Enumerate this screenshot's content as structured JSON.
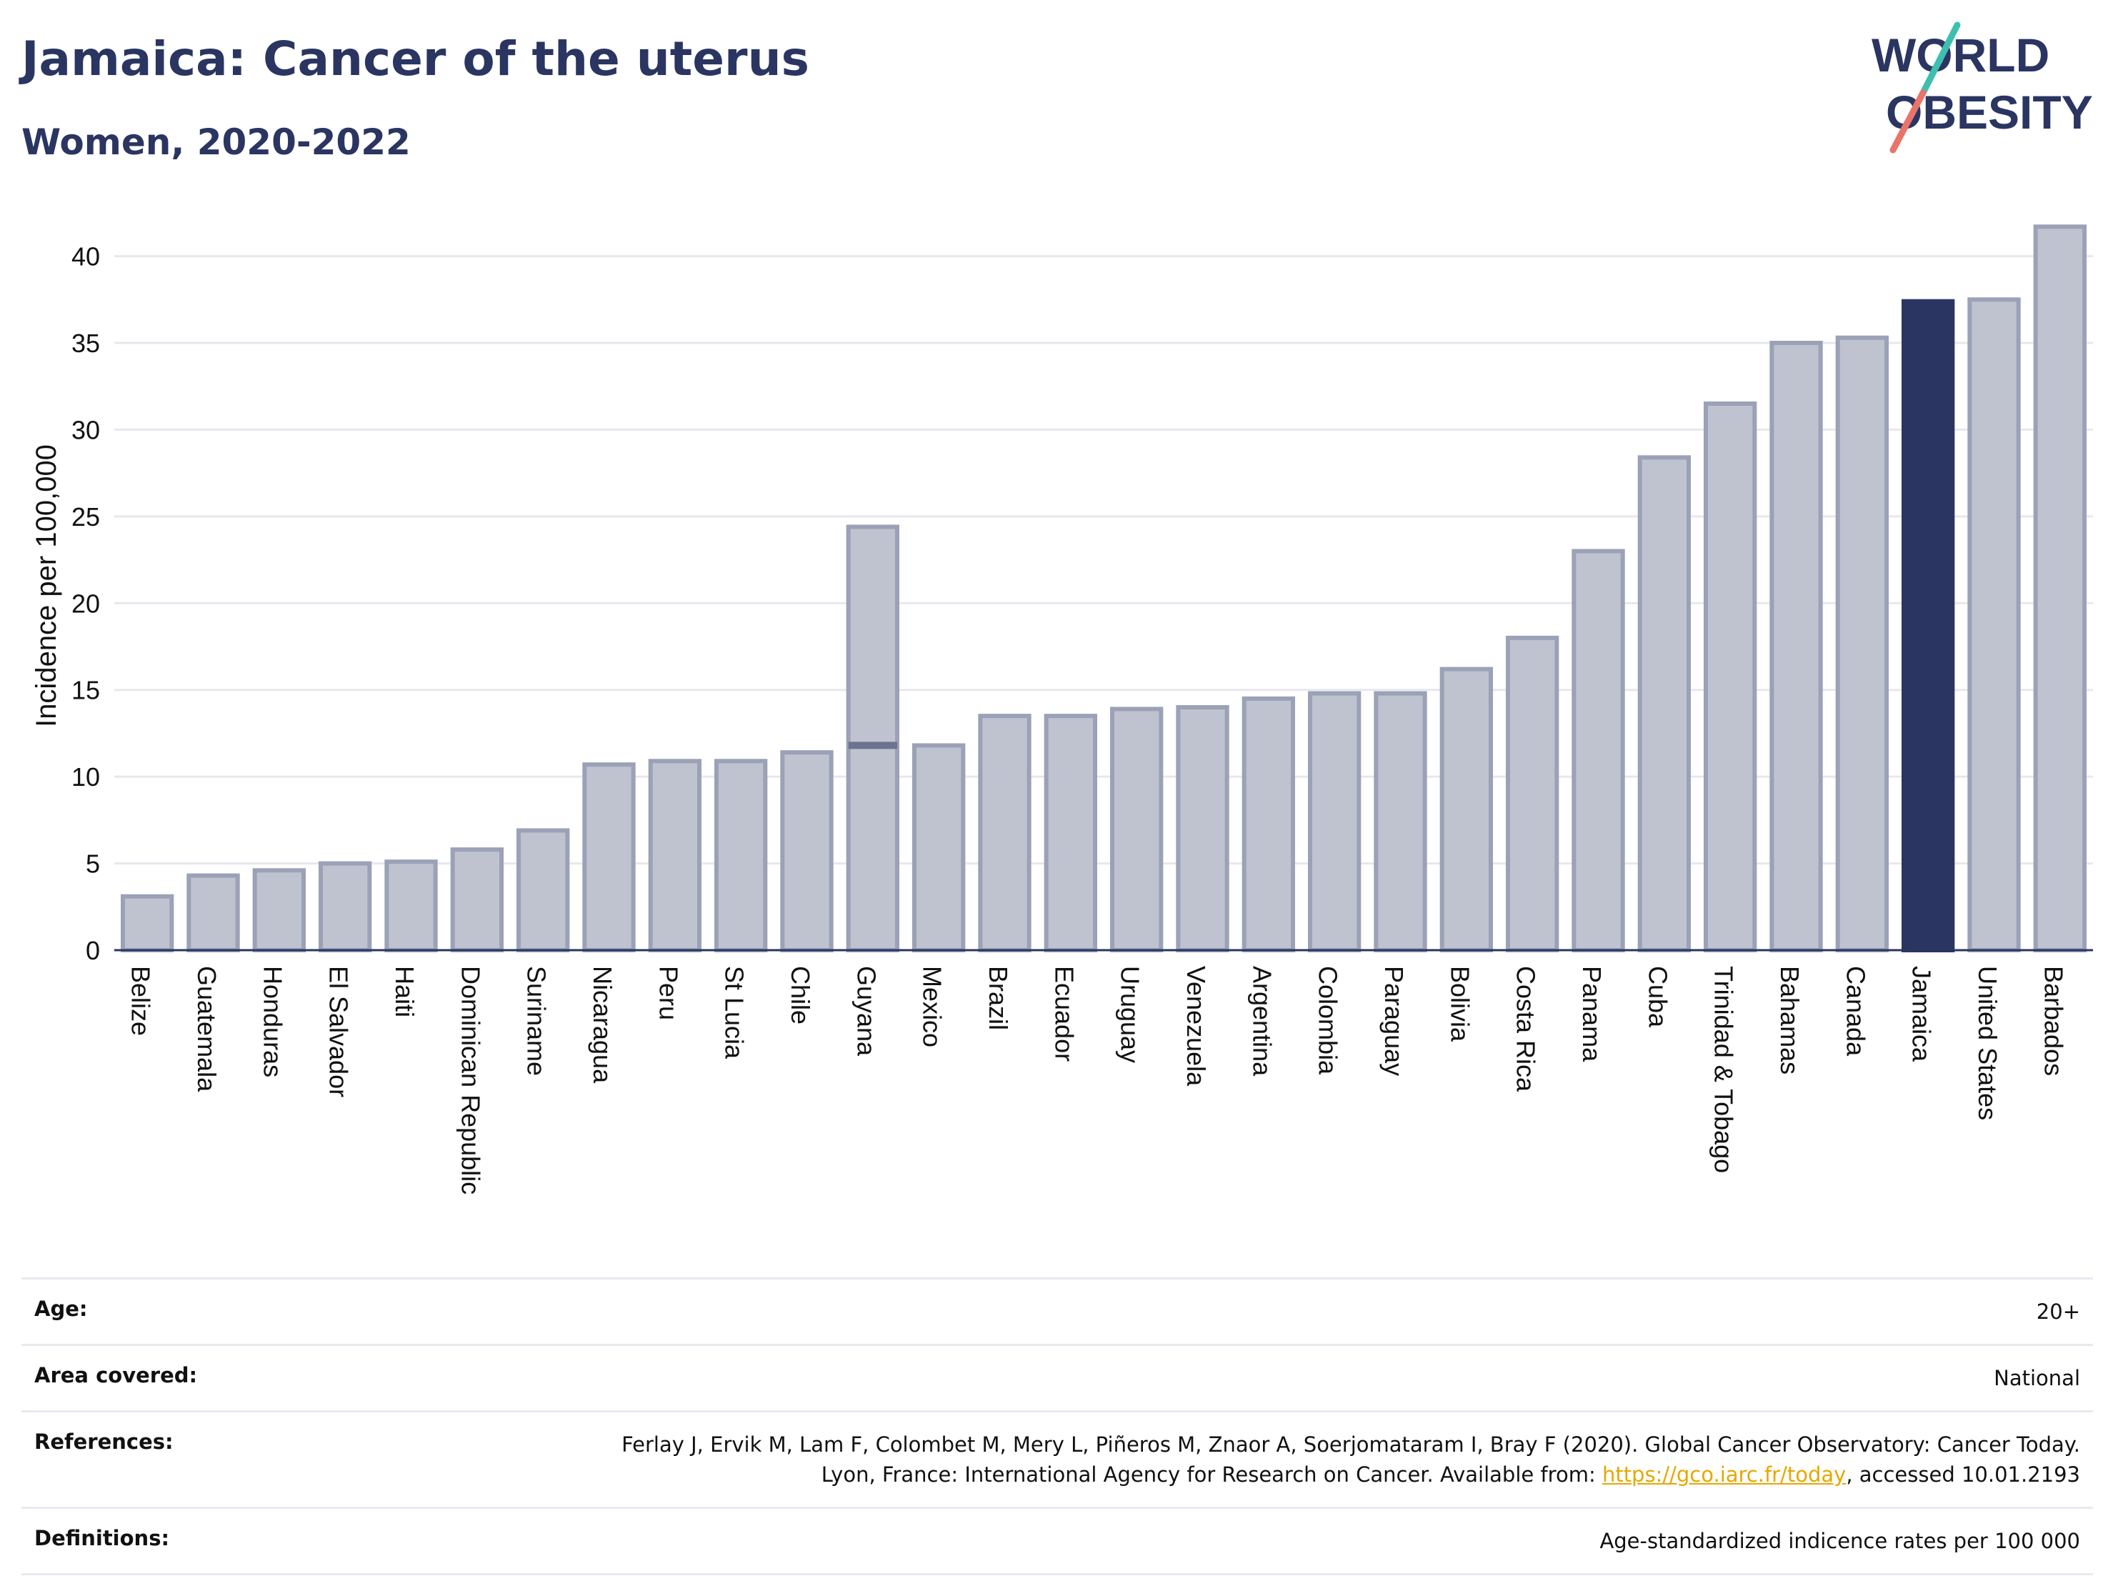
{
  "header": {
    "title": "Jamaica: Cancer of the uterus",
    "subtitle": "Women, 2020-2022"
  },
  "logo": {
    "line1": "WORLD",
    "line2": "OBESITY"
  },
  "colors": {
    "highlight": "#2a3561",
    "bar": "#bfc3d0",
    "bar_border": "#9ba1b6",
    "grid": "#e6e8ee",
    "text": "#2a3561",
    "link": "#e6a800"
  },
  "chart_data": {
    "type": "bar",
    "title": "Jamaica: Cancer of the uterus",
    "subtitle": "Women, 2020-2022",
    "xlabel": "",
    "ylabel": "Incidence per 100,000",
    "ylim": [
      0,
      42
    ],
    "yticks": [
      0,
      5,
      10,
      15,
      20,
      25,
      30,
      35,
      40
    ],
    "grid": true,
    "highlight": "Jamaica",
    "categories": [
      "Belize",
      "Guatemala",
      "Honduras",
      "El Salvador",
      "Haiti",
      "Dominican Republic",
      "Suriname",
      "Nicaragua",
      "Peru",
      "St Lucia",
      "Chile",
      "Guyana",
      "Mexico",
      "Brazil",
      "Ecuador",
      "Uruguay",
      "Venezuela",
      "Argentina",
      "Colombia",
      "Paraguay",
      "Bolivia",
      "Costa Rica",
      "Panama",
      "Cuba",
      "Trinidad & Tobago",
      "Bahamas",
      "Canada",
      "Jamaica",
      "United States",
      "Barbados"
    ],
    "values": [
      3.1,
      4.3,
      4.6,
      5.0,
      5.1,
      5.8,
      6.9,
      10.7,
      10.9,
      10.9,
      11.4,
      24.4,
      11.8,
      13.5,
      13.5,
      13.9,
      14.0,
      14.5,
      14.8,
      14.8,
      16.2,
      18.0,
      23.0,
      28.4,
      31.5,
      35.0,
      35.3,
      37.4,
      37.5,
      41.7
    ],
    "overlay_markers": [
      {
        "category": "Guyana",
        "value": 11.8
      }
    ]
  },
  "info": {
    "rows": [
      {
        "label": "Age:",
        "value": "20+"
      },
      {
        "label": "Area covered:",
        "value": "National"
      },
      {
        "label": "References:",
        "value_before": "Ferlay J, Ervik M, Lam F, Colombet M, Mery L, Piñeros M, Znaor A, Soerjomataram I, Bray F (2020). Global Cancer Observatory: Cancer Today. Lyon, France: International Agency for Research on Cancer. Available from: ",
        "link": "https://gco.iarc.fr/today",
        "value_after": ", accessed 10.01.2193"
      },
      {
        "label": "Definitions:",
        "value": "Age-standardized indicence rates per 100 000"
      }
    ]
  }
}
